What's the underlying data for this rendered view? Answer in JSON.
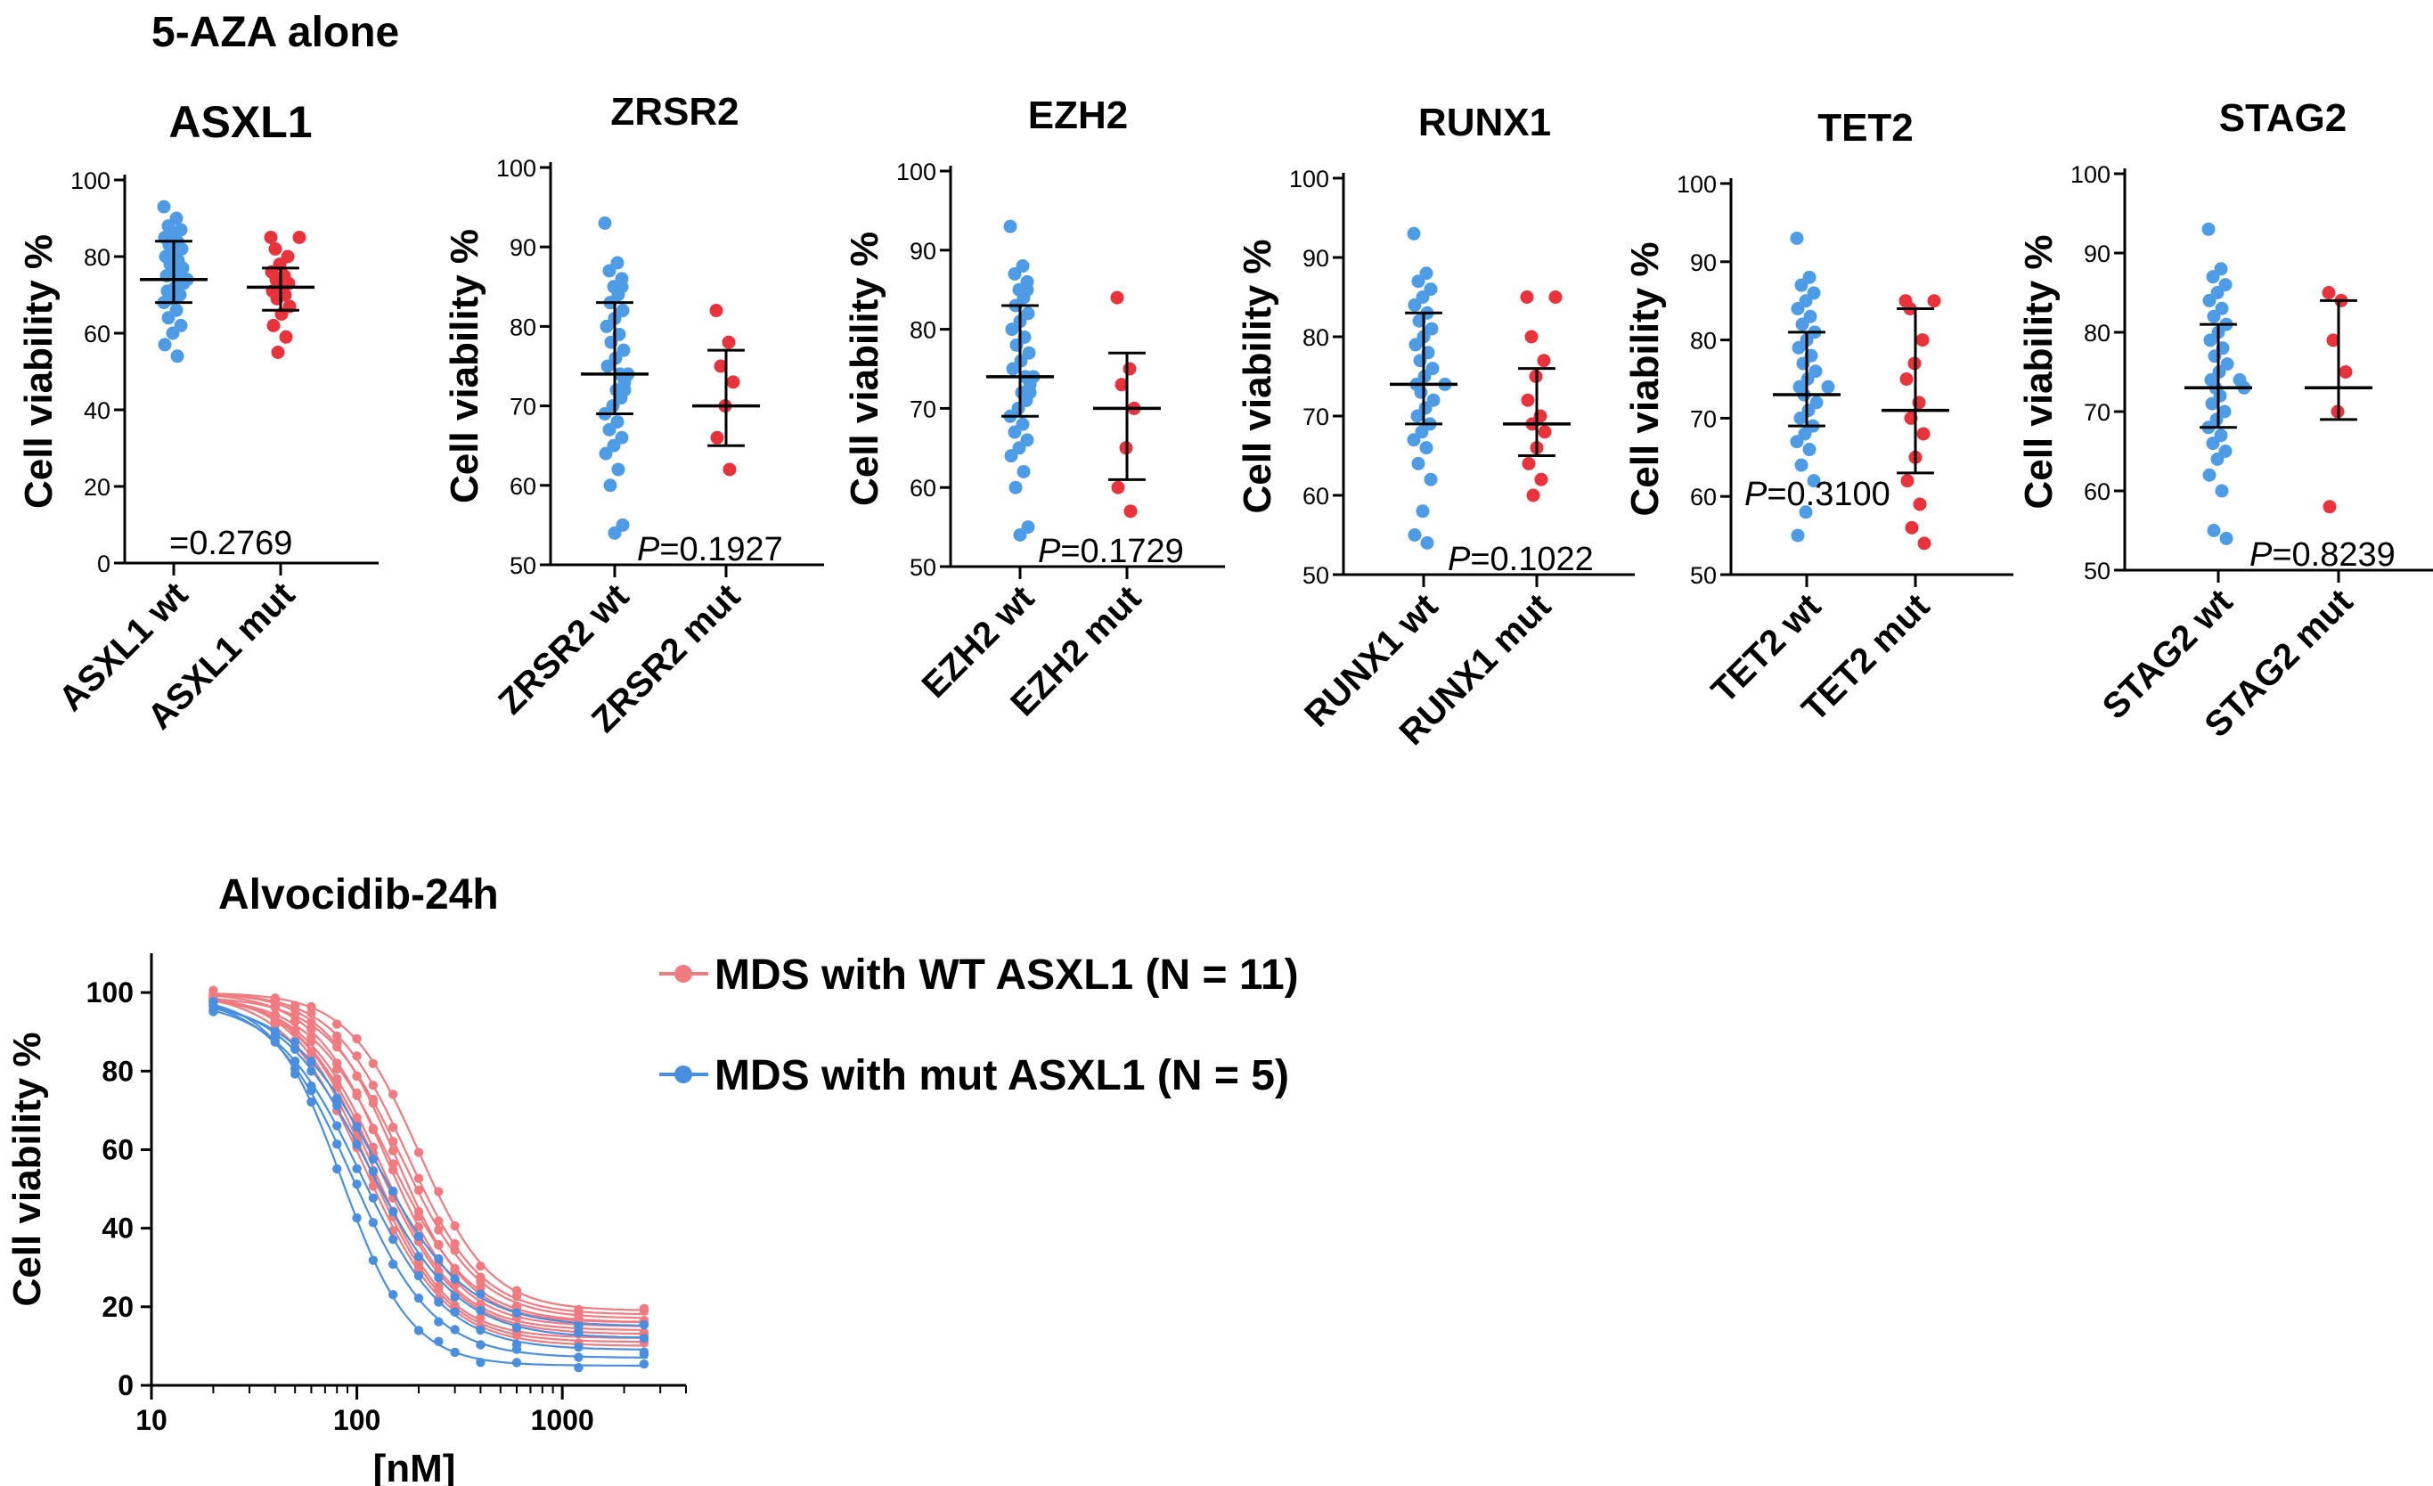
{
  "figure": {
    "section_top_title": "5-AZA alone",
    "section_bottom_title": "Alvocidib-24h"
  },
  "colors": {
    "wt": "#4f9ce6",
    "mut": "#e8323c",
    "wt_curve_group": "#f07b80",
    "mut_curve_group": "#4a8fdf"
  },
  "chart_data": [
    {
      "type": "scatter",
      "title": "ASXL1",
      "ylabel": "Cell viability %",
      "ylim": [
        0,
        100
      ],
      "yticks": [
        0,
        20,
        40,
        60,
        80,
        100
      ],
      "categories": [
        "ASXL1 wt",
        "ASXL1 mut"
      ],
      "p_label": "=0.2769",
      "series": [
        {
          "name": "ASXL1 wt",
          "median": 74,
          "q1": 68,
          "q3": 84,
          "values": [
            93,
            90,
            88,
            87,
            86,
            85,
            84,
            83,
            82,
            81,
            80,
            79,
            78,
            77,
            76,
            75,
            74,
            74,
            73,
            72,
            71,
            70,
            69,
            68,
            66,
            64,
            62,
            60,
            57,
            54
          ]
        },
        {
          "name": "ASXL1 mut",
          "median": 72,
          "q1": 66,
          "q3": 77,
          "values": [
            85,
            85,
            82,
            80,
            78,
            76,
            75,
            74,
            73,
            72,
            71,
            70,
            69,
            67,
            65,
            62,
            59,
            55
          ]
        }
      ]
    },
    {
      "type": "scatter",
      "title": "ZRSR2",
      "ylabel": "Cell viability %",
      "ylim": [
        50,
        100
      ],
      "yticks": [
        50,
        60,
        70,
        80,
        90,
        100
      ],
      "categories": [
        "ZRSR2 wt",
        "ZRSR2 mut"
      ],
      "p_label": "P=0.1927",
      "series": [
        {
          "name": "ZRSR2 wt",
          "median": 74,
          "q1": 69,
          "q3": 83,
          "values": [
            93,
            88,
            87,
            86,
            85,
            85,
            84,
            83,
            82,
            81,
            80,
            79,
            78,
            77,
            76,
            75,
            74,
            74,
            73,
            72,
            72,
            71,
            70,
            69,
            68,
            67,
            66,
            65,
            64,
            62,
            60,
            55,
            54
          ]
        },
        {
          "name": "ZRSR2 mut",
          "median": 70,
          "q1": 65,
          "q3": 77,
          "values": [
            82,
            78,
            75,
            73,
            70,
            66,
            62
          ]
        }
      ]
    },
    {
      "type": "scatter",
      "title": "EZH2",
      "ylabel": "Cell viability %",
      "ylim": [
        50,
        100
      ],
      "yticks": [
        50,
        60,
        70,
        80,
        90,
        100
      ],
      "categories": [
        "EZH2 wt",
        "EZH2 mut"
      ],
      "p_label": "P=0.1729",
      "series": [
        {
          "name": "EZH2 wt",
          "median": 74,
          "q1": 69,
          "q3": 83,
          "values": [
            93,
            88,
            87,
            86,
            85,
            85,
            84,
            83,
            82,
            81,
            80,
            79,
            78,
            77,
            76,
            75,
            74,
            74,
            73,
            72,
            72,
            71,
            70,
            69,
            68,
            67,
            66,
            65,
            64,
            62,
            60,
            55,
            54
          ]
        },
        {
          "name": "EZH2 mut",
          "median": 70,
          "q1": 61,
          "q3": 77,
          "values": [
            84,
            75,
            73,
            70,
            65,
            60,
            57
          ]
        }
      ]
    },
    {
      "type": "scatter",
      "title": "RUNX1",
      "ylabel": "Cell viability %",
      "ylim": [
        50,
        100
      ],
      "yticks": [
        50,
        60,
        70,
        80,
        90,
        100
      ],
      "categories": [
        "RUNX1 wt",
        "RUNX1 mut"
      ],
      "p_label": "P=0.1022",
      "series": [
        {
          "name": "RUNX1 wt",
          "median": 74,
          "q1": 69,
          "q3": 83,
          "values": [
            93,
            88,
            87,
            86,
            85,
            84,
            83,
            82,
            81,
            80,
            79,
            78,
            77,
            76,
            75,
            74,
            74,
            73,
            72,
            71,
            70,
            69,
            68,
            67,
            66,
            64,
            62,
            58,
            55,
            54
          ]
        },
        {
          "name": "RUNX1 mut",
          "median": 69,
          "q1": 65,
          "q3": 76,
          "values": [
            85,
            85,
            80,
            77,
            75,
            72,
            70,
            69,
            68,
            66,
            64,
            62,
            60
          ]
        }
      ]
    },
    {
      "type": "scatter",
      "title": "TET2",
      "ylabel": "Cell viability %",
      "ylim": [
        50,
        100
      ],
      "yticks": [
        50,
        60,
        70,
        80,
        90,
        100
      ],
      "categories": [
        "TET2 wt",
        "TET2 mut"
      ],
      "p_label": "P=0.3100",
      "series": [
        {
          "name": "TET2 wt",
          "median": 73,
          "q1": 69,
          "q3": 81,
          "values": [
            93,
            88,
            87,
            86,
            85,
            84,
            83,
            82,
            81,
            80,
            79,
            78,
            77,
            76,
            75,
            74,
            74,
            73,
            72,
            71,
            70,
            69,
            68,
            67,
            66,
            64,
            62,
            58,
            55
          ]
        },
        {
          "name": "TET2 mut",
          "median": 71,
          "q1": 63,
          "q3": 84,
          "values": [
            85,
            85,
            84,
            80,
            77,
            75,
            72,
            70,
            68,
            65,
            62,
            59,
            56,
            54
          ]
        }
      ]
    },
    {
      "type": "scatter",
      "title": "STAG2",
      "ylabel": "Cell viability %",
      "ylim": [
        50,
        100
      ],
      "yticks": [
        50,
        60,
        70,
        80,
        90,
        100
      ],
      "categories": [
        "STAG2 wt",
        "STAG2 mut"
      ],
      "p_label": "P=0.8239",
      "series": [
        {
          "name": "STAG2 wt",
          "median": 73,
          "q1": 68,
          "q3": 81,
          "values": [
            93,
            88,
            87,
            86,
            85,
            84,
            83,
            82,
            81,
            80,
            79,
            78,
            77,
            76,
            75,
            74,
            74,
            73,
            73,
            72,
            71,
            70,
            69,
            68,
            67,
            66,
            65,
            64,
            62,
            60,
            55,
            54
          ]
        },
        {
          "name": "STAG2 mut",
          "median": 73,
          "q1": 69,
          "q3": 84,
          "values": [
            85,
            84,
            79,
            75,
            70,
            58
          ]
        }
      ]
    },
    {
      "type": "line",
      "title": "Alvocidib-24h",
      "ylabel": "Cell viability %",
      "xlabel": "[nM]",
      "xscale": "log",
      "xlim": [
        10,
        4000
      ],
      "ylim": [
        0,
        110
      ],
      "yticks": [
        0,
        20,
        40,
        60,
        80,
        100
      ],
      "xticks": [
        10,
        100,
        1000
      ],
      "x": [
        20,
        40,
        50,
        60,
        80,
        100,
        120,
        150,
        200,
        250,
        300,
        400,
        600,
        1200,
        2500
      ],
      "legend": [
        {
          "label": "MDS with WT ASXL1 (N = 11)",
          "group": "wt"
        },
        {
          "label": "MDS with mut ASXL1 (N = 5)",
          "group": "mut"
        }
      ],
      "series": [
        {
          "name": "MDS with WT ASXL1 (N = 11)",
          "group": "wt",
          "curves": [
            {
              "top": 100,
              "bottom": 19,
              "ic50": 200,
              "hill": 2.5
            },
            {
              "top": 100,
              "bottom": 18,
              "ic50": 175,
              "hill": 2.4
            },
            {
              "top": 99,
              "bottom": 17,
              "ic50": 165,
              "hill": 2.3
            },
            {
              "top": 100,
              "bottom": 16,
              "ic50": 155,
              "hill": 2.5
            },
            {
              "top": 99,
              "bottom": 16,
              "ic50": 145,
              "hill": 2.2
            },
            {
              "top": 100,
              "bottom": 15,
              "ic50": 140,
              "hill": 2.4
            },
            {
              "top": 99,
              "bottom": 14,
              "ic50": 130,
              "hill": 2.3
            },
            {
              "top": 100,
              "bottom": 13,
              "ic50": 125,
              "hill": 2.2
            },
            {
              "top": 99,
              "bottom": 12,
              "ic50": 120,
              "hill": 2.4
            },
            {
              "top": 100,
              "bottom": 11,
              "ic50": 115,
              "hill": 2.3
            },
            {
              "top": 100,
              "bottom": 10,
              "ic50": 110,
              "hill": 2.2
            }
          ]
        },
        {
          "name": "MDS with mut ASXL1 (N = 5)",
          "group": "mut",
          "curves": [
            {
              "top": 99,
              "bottom": 5,
              "ic50": 85,
              "hill": 2.6
            },
            {
              "top": 99,
              "bottom": 7,
              "ic50": 95,
              "hill": 2.2
            },
            {
              "top": 98,
              "bottom": 9,
              "ic50": 105,
              "hill": 2.1
            },
            {
              "top": 99,
              "bottom": 12,
              "ic50": 115,
              "hill": 2.0
            },
            {
              "top": 98,
              "bottom": 15,
              "ic50": 125,
              "hill": 2.0
            }
          ]
        }
      ]
    }
  ]
}
